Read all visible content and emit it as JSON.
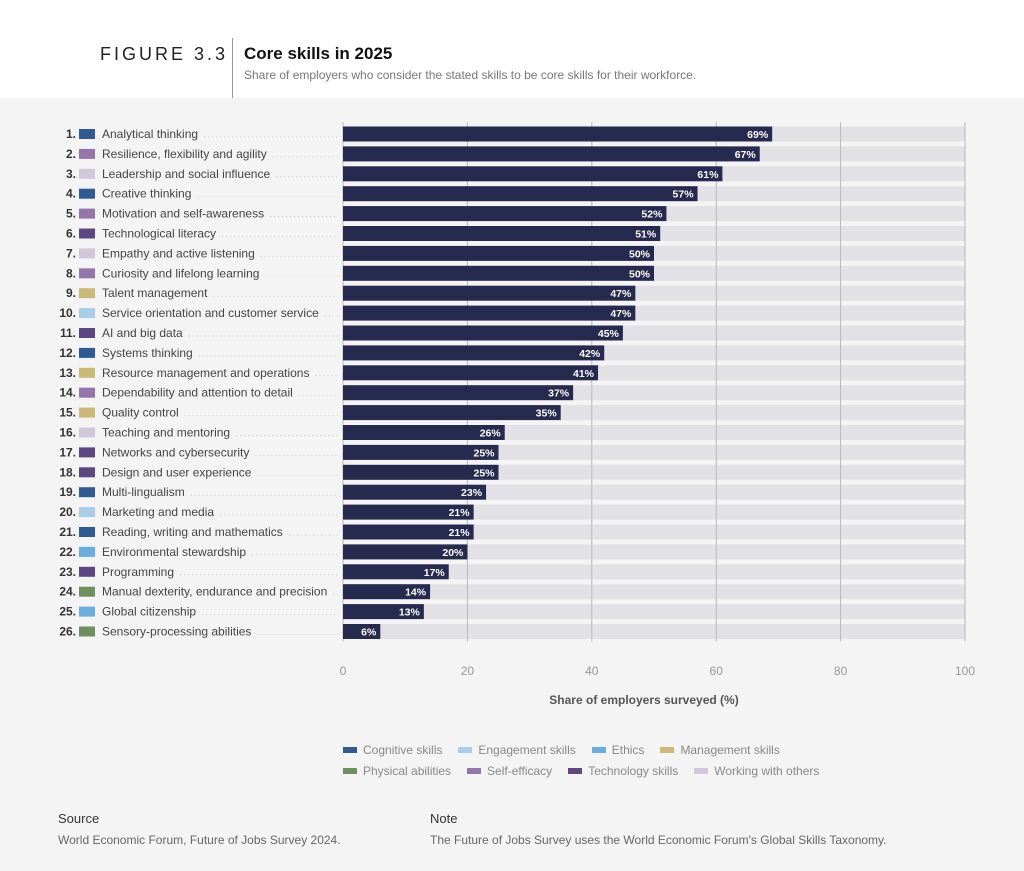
{
  "header": {
    "figure_label": "FIGURE 3.3",
    "title": "Core skills in 2025",
    "subtitle": "Share of employers who consider the stated skills to be core skills for their workforce."
  },
  "chart_data": {
    "type": "bar",
    "orientation": "horizontal",
    "title": "Core skills in 2025",
    "xlabel": "Share of employers surveyed (%)",
    "xlim": [
      0,
      100
    ],
    "xticks": [
      0,
      20,
      40,
      60,
      80,
      100
    ],
    "grid": true,
    "bar_color": "#262a4f",
    "track_color": "#e2e2e6",
    "categories_colors": {
      "Cognitive skills": "#2f5b92",
      "Engagement skills": "#a8cde6",
      "Ethics": "#6aaedd",
      "Management skills": "#cbb978",
      "Physical abilities": "#6f8f5f",
      "Self-efficacy": "#9675ad",
      "Technology skills": "#5e4780",
      "Working with others": "#d2c6da"
    },
    "items": [
      {
        "rank": "1.",
        "label": "Analytical thinking",
        "value": 69,
        "category": "Cognitive skills"
      },
      {
        "rank": "2.",
        "label": "Resilience, flexibility and agility",
        "value": 67,
        "category": "Self-efficacy"
      },
      {
        "rank": "3.",
        "label": "Leadership and social influence",
        "value": 61,
        "category": "Working with others"
      },
      {
        "rank": "4.",
        "label": "Creative thinking",
        "value": 57,
        "category": "Cognitive skills"
      },
      {
        "rank": "5.",
        "label": "Motivation and self-awareness",
        "value": 52,
        "category": "Self-efficacy"
      },
      {
        "rank": "6.",
        "label": "Technological literacy",
        "value": 51,
        "category": "Technology skills"
      },
      {
        "rank": "7.",
        "label": "Empathy and active listening",
        "value": 50,
        "category": "Working with others"
      },
      {
        "rank": "8.",
        "label": "Curiosity and lifelong learning",
        "value": 50,
        "category": "Self-efficacy"
      },
      {
        "rank": "9.",
        "label": "Talent management",
        "value": 47,
        "category": "Management skills"
      },
      {
        "rank": "10.",
        "label": "Service orientation and customer service",
        "value": 47,
        "category": "Engagement skills"
      },
      {
        "rank": "11.",
        "label": "AI and big data",
        "value": 45,
        "category": "Technology skills"
      },
      {
        "rank": "12.",
        "label": "Systems thinking",
        "value": 42,
        "category": "Cognitive skills"
      },
      {
        "rank": "13.",
        "label": "Resource management and operations",
        "value": 41,
        "category": "Management skills"
      },
      {
        "rank": "14.",
        "label": "Dependability and attention to detail",
        "value": 37,
        "category": "Self-efficacy"
      },
      {
        "rank": "15.",
        "label": "Quality control",
        "value": 35,
        "category": "Management skills"
      },
      {
        "rank": "16.",
        "label": "Teaching and mentoring",
        "value": 26,
        "category": "Working with others"
      },
      {
        "rank": "17.",
        "label": "Networks and cybersecurity",
        "value": 25,
        "category": "Technology skills"
      },
      {
        "rank": "18.",
        "label": "Design and user experience",
        "value": 25,
        "category": "Technology skills"
      },
      {
        "rank": "19.",
        "label": "Multi-lingualism",
        "value": 23,
        "category": "Cognitive skills"
      },
      {
        "rank": "20.",
        "label": "Marketing and media",
        "value": 21,
        "category": "Engagement skills"
      },
      {
        "rank": "21.",
        "label": "Reading, writing and mathematics",
        "value": 21,
        "category": "Cognitive skills"
      },
      {
        "rank": "22.",
        "label": "Environmental stewardship",
        "value": 20,
        "category": "Ethics"
      },
      {
        "rank": "23.",
        "label": "Programming",
        "value": 17,
        "category": "Technology skills"
      },
      {
        "rank": "24.",
        "label": "Manual dexterity, endurance and precision",
        "value": 14,
        "category": "Physical abilities"
      },
      {
        "rank": "25.",
        "label": "Global citizenship",
        "value": 13,
        "category": "Ethics"
      },
      {
        "rank": "26.",
        "label": "Sensory-processing abilities",
        "value": 6,
        "category": "Physical abilities"
      }
    ],
    "legend": [
      [
        "Cognitive skills",
        "Engagement skills",
        "Ethics",
        "Management skills"
      ],
      [
        "Physical abilities",
        "Self-efficacy",
        "Technology skills",
        "Working with others"
      ]
    ]
  },
  "footer": {
    "source_heading": "Source",
    "source_text": "World Economic Forum, Future of Jobs Survey 2024.",
    "note_heading": "Note",
    "note_text": "The Future of Jobs Survey uses the World Economic Forum's Global Skills Taxonomy."
  }
}
